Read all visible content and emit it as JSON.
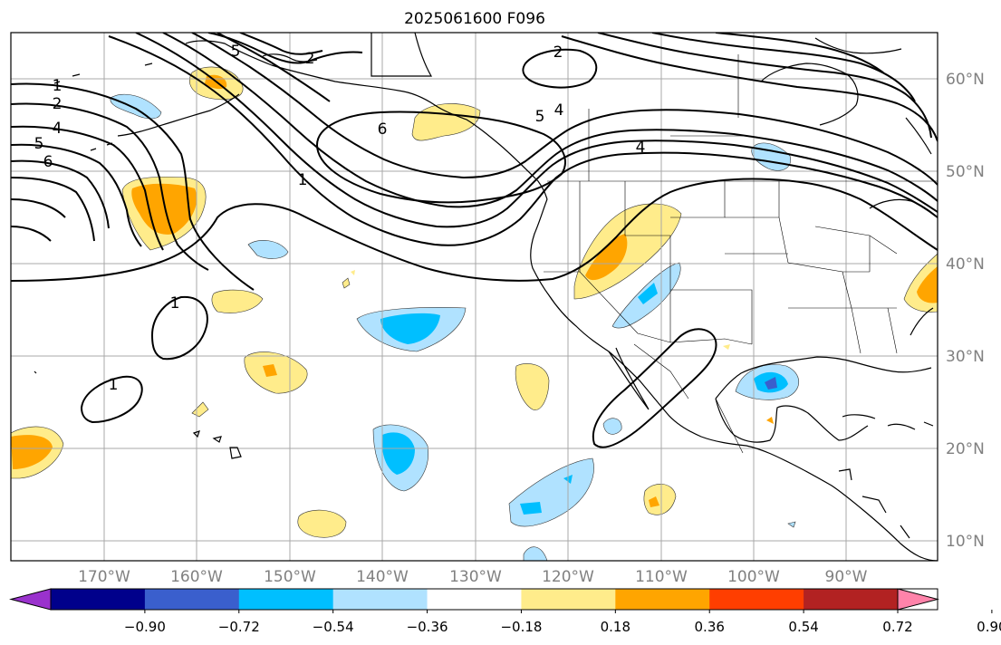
{
  "title": "2025061600 F096",
  "map": {
    "lon_range": [
      -180,
      -80
    ],
    "lat_range": [
      8,
      65
    ],
    "gridlines": true,
    "lon_labels": [
      "170°W",
      "160°W",
      "150°W",
      "140°W",
      "130°W",
      "120°W",
      "110°W",
      "100°W",
      "90°W"
    ],
    "lat_labels": [
      "60°N",
      "50°N",
      "40°N",
      "30°N",
      "20°N",
      "10°N"
    ]
  },
  "contour_labels": [
    "1",
    "2",
    "4",
    "5",
    "6",
    "5",
    "2",
    "6",
    "1",
    "5",
    "4",
    "2",
    "4",
    "1",
    "1"
  ],
  "colorbar": {
    "tick_labels": [
      "−0.90",
      "−0.72",
      "−0.54",
      "−0.36",
      "−0.18",
      "0.18",
      "0.36",
      "0.54",
      "0.72",
      "0.90"
    ],
    "colors": [
      "#9a32cd",
      "#00008b",
      "#3a5fcd",
      "#00bfff",
      "#b0e2ff",
      "#ffffff",
      "#ffec8b",
      "#ffa500",
      "#ff3e00",
      "#b22222",
      "#ff83aa"
    ],
    "extend": "both"
  },
  "colors": {
    "land_outline": "#000000",
    "contour": "#000000",
    "grid": "#a9a9a9"
  }
}
